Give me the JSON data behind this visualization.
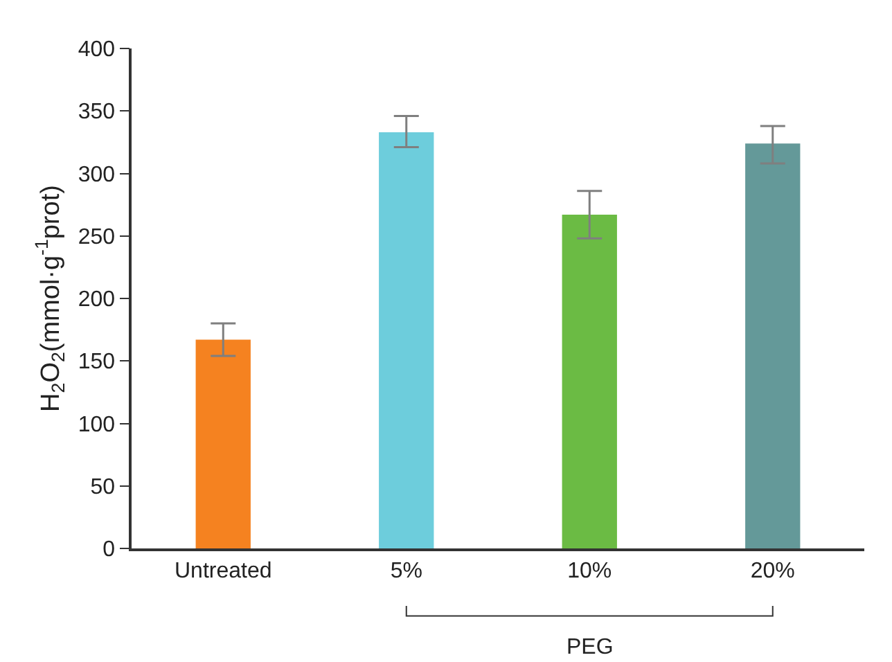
{
  "chart_data": {
    "type": "bar",
    "ylabel": "H$_{2}$O$_{2}$(mmol·g$^{-1}$prot)",
    "categories": [
      "Untreated",
      "5%",
      "10%",
      "20%"
    ],
    "values": [
      167,
      333,
      267,
      324
    ],
    "colors": [
      "#f58220",
      "#6dcddc",
      "#6bbb44",
      "#649999"
    ],
    "errors": [
      [
        154,
        180
      ],
      [
        321,
        346
      ],
      [
        248,
        286
      ],
      [
        308,
        338
      ]
    ],
    "ylim": [
      0,
      400
    ],
    "yticks": [
      0,
      50,
      100,
      150,
      200,
      250,
      300,
      350,
      400
    ],
    "annotations": [
      "PEG"
    ]
  }
}
